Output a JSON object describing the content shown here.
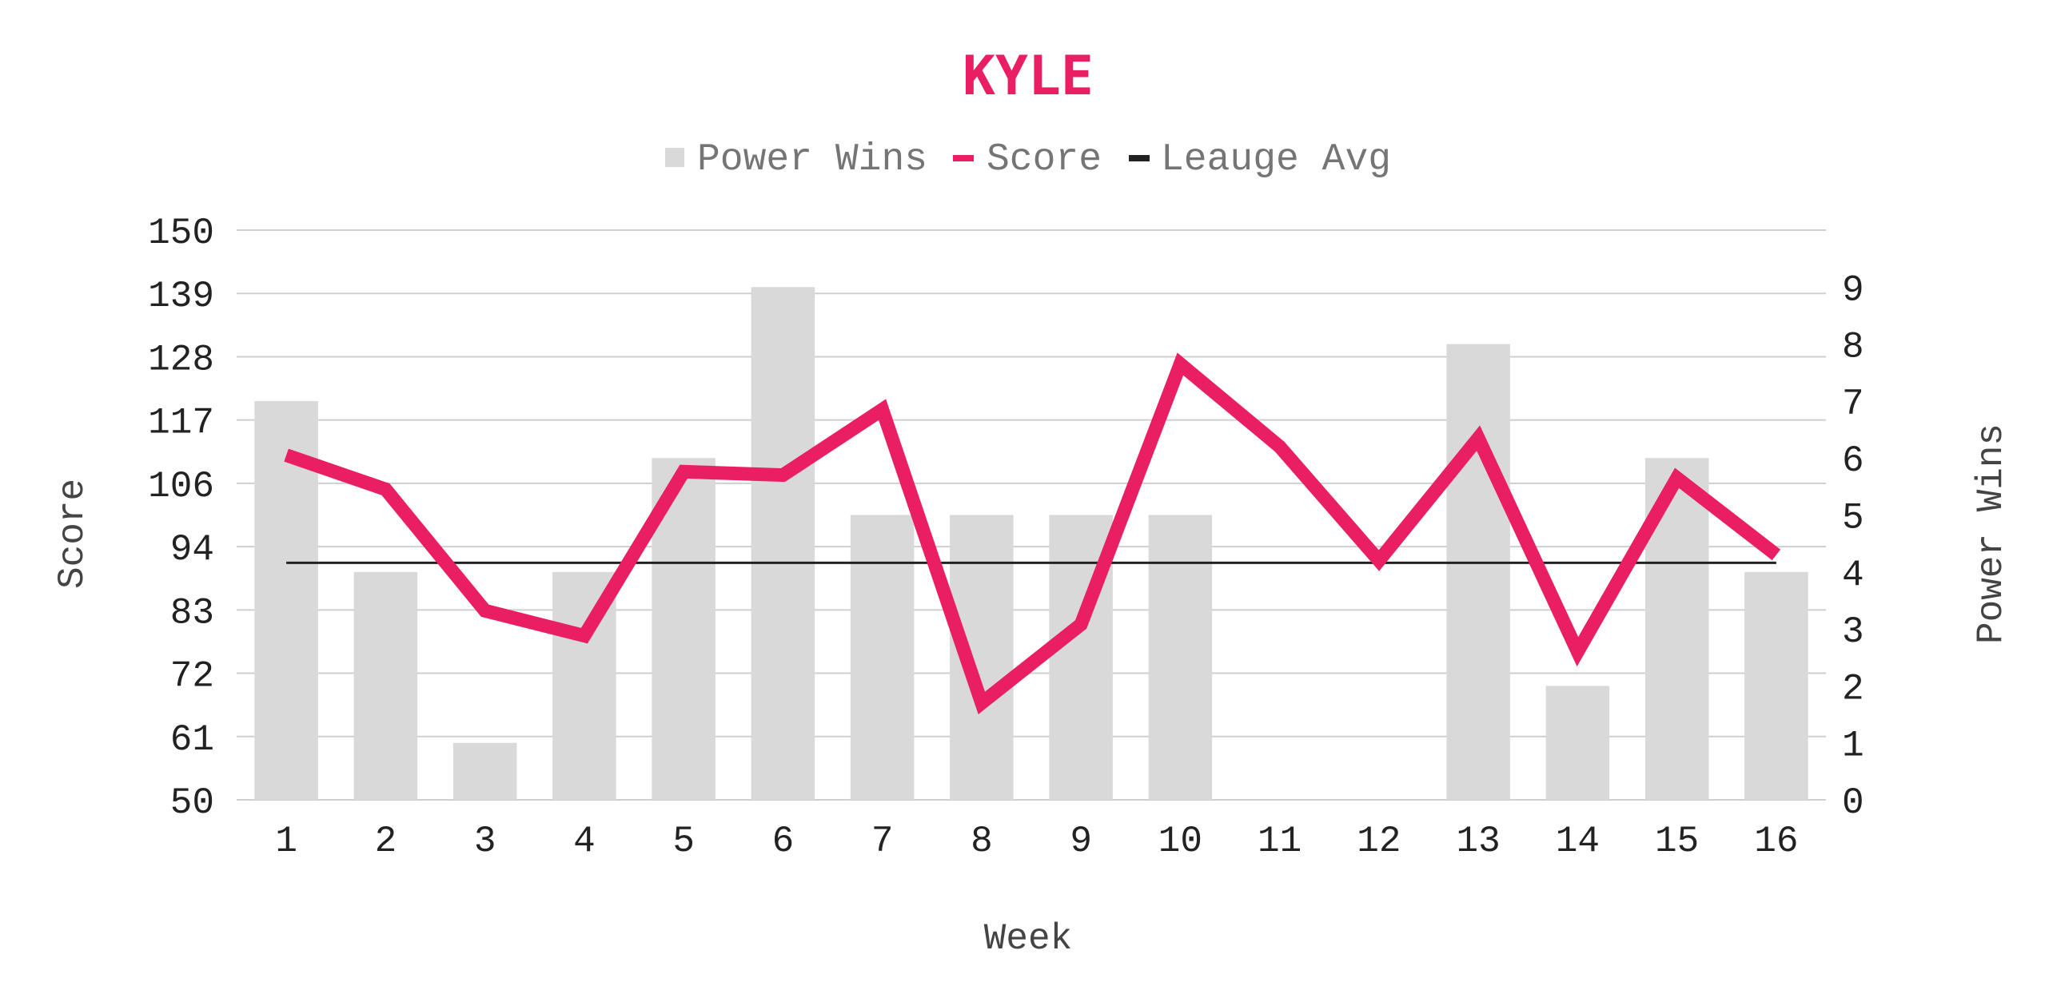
{
  "chart_data": {
    "type": "bar",
    "title": "KYLE",
    "xlabel": "Week",
    "ylabel": "Score",
    "y2label": "Power Wins",
    "categories": [
      "1",
      "2",
      "3",
      "4",
      "5",
      "6",
      "7",
      "8",
      "9",
      "10",
      "11",
      "12",
      "13",
      "14",
      "15",
      "16"
    ],
    "y_ticks": [
      "50",
      "61",
      "72",
      "83",
      "94",
      "106",
      "117",
      "128",
      "139",
      "150"
    ],
    "y2_ticks": [
      "0",
      "1",
      "2",
      "3",
      "4",
      "5",
      "6",
      "7",
      "8",
      "9"
    ],
    "ylim": [
      50,
      150
    ],
    "y2lim": [
      0,
      10
    ],
    "grid": true,
    "legend_position": "top",
    "series": [
      {
        "name": "Power Wins",
        "kind": "bar",
        "axis": "right",
        "color": "#d9d9d9",
        "values": [
          7,
          4,
          1,
          4,
          6,
          9,
          5,
          5,
          5,
          5,
          0,
          0,
          8,
          2,
          6,
          4
        ]
      },
      {
        "name": "Score",
        "kind": "line",
        "axis": "left",
        "color": "#e91e63",
        "values": [
          110.5,
          104.5,
          83.2,
          78.8,
          107.6,
          107.0,
          118.5,
          67.0,
          80.8,
          126.5,
          112.0,
          92.0,
          113.5,
          76.0,
          106.5,
          93.0
        ]
      },
      {
        "name": "Leauge Avg",
        "kind": "line",
        "axis": "left",
        "color": "#222222",
        "values": [
          91.6,
          91.6,
          91.6,
          91.6,
          91.6,
          91.6,
          91.6,
          91.6,
          91.6,
          91.6,
          91.6,
          91.6,
          91.6,
          91.6,
          91.6,
          91.6
        ]
      }
    ]
  }
}
